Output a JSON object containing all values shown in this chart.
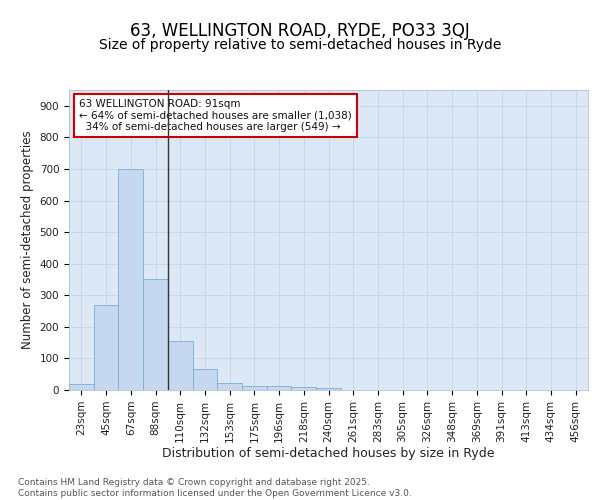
{
  "title1": "63, WELLINGTON ROAD, RYDE, PO33 3QJ",
  "title2": "Size of property relative to semi-detached houses in Ryde",
  "xlabel": "Distribution of semi-detached houses by size in Ryde",
  "ylabel": "Number of semi-detached properties",
  "bar_labels": [
    "23sqm",
    "45sqm",
    "67sqm",
    "88sqm",
    "110sqm",
    "132sqm",
    "153sqm",
    "175sqm",
    "196sqm",
    "218sqm",
    "240sqm",
    "261sqm",
    "283sqm",
    "305sqm",
    "326sqm",
    "348sqm",
    "369sqm",
    "391sqm",
    "413sqm",
    "434sqm",
    "456sqm"
  ],
  "bar_values": [
    20,
    270,
    700,
    350,
    155,
    68,
    22,
    12,
    14,
    10,
    5,
    0,
    0,
    0,
    0,
    0,
    0,
    0,
    0,
    0,
    0
  ],
  "bar_color": "#c5d8ef",
  "bar_edge_color": "#7aadd4",
  "subject_line_color": "#333333",
  "annotation_text": "63 WELLINGTON ROAD: 91sqm\n← 64% of semi-detached houses are smaller (1,038)\n  34% of semi-detached houses are larger (549) →",
  "annotation_box_color": "#cc0000",
  "figure_background": "#ffffff",
  "plot_background": "#dce8f5",
  "grid_color": "#c8d8ec",
  "ylim": [
    0,
    950
  ],
  "yticks": [
    0,
    100,
    200,
    300,
    400,
    500,
    600,
    700,
    800,
    900
  ],
  "footer_text": "Contains HM Land Registry data © Crown copyright and database right 2025.\nContains public sector information licensed under the Open Government Licence v3.0.",
  "title1_fontsize": 12,
  "title2_fontsize": 10,
  "xlabel_fontsize": 9,
  "ylabel_fontsize": 8.5,
  "tick_fontsize": 7.5,
  "annotation_fontsize": 7.5,
  "footer_fontsize": 6.5
}
